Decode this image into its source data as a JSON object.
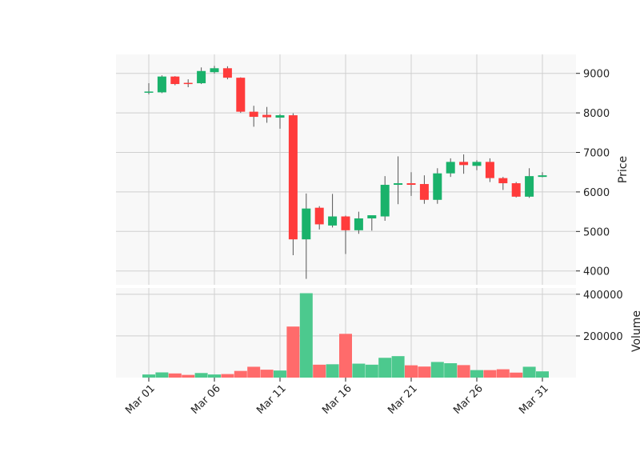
{
  "chart_data": {
    "type": "candlestick",
    "dates": [
      "Mar 01",
      "Mar 02",
      "Mar 03",
      "Mar 04",
      "Mar 05",
      "Mar 06",
      "Mar 07",
      "Mar 08",
      "Mar 09",
      "Mar 10",
      "Mar 11",
      "Mar 12",
      "Mar 13",
      "Mar 14",
      "Mar 15",
      "Mar 16",
      "Mar 17",
      "Mar 18",
      "Mar 19",
      "Mar 20",
      "Mar 21",
      "Mar 22",
      "Mar 23",
      "Mar 24",
      "Mar 25",
      "Mar 26",
      "Mar 27",
      "Mar 28",
      "Mar 29",
      "Mar 30",
      "Mar 31"
    ],
    "ohlc": [
      {
        "o": 8520,
        "h": 8750,
        "l": 8470,
        "c": 8540
      },
      {
        "o": 8520,
        "h": 8950,
        "l": 8500,
        "c": 8920
      },
      {
        "o": 8920,
        "h": 8930,
        "l": 8700,
        "c": 8730
      },
      {
        "o": 8760,
        "h": 8850,
        "l": 8650,
        "c": 8750
      },
      {
        "o": 8750,
        "h": 9150,
        "l": 8730,
        "c": 9060
      },
      {
        "o": 9030,
        "h": 9190,
        "l": 9000,
        "c": 9130
      },
      {
        "o": 9130,
        "h": 9180,
        "l": 8850,
        "c": 8890
      },
      {
        "o": 8890,
        "h": 8900,
        "l": 8000,
        "c": 8030
      },
      {
        "o": 8030,
        "h": 8180,
        "l": 7650,
        "c": 7900
      },
      {
        "o": 7950,
        "h": 8150,
        "l": 7750,
        "c": 7890
      },
      {
        "o": 7880,
        "h": 7970,
        "l": 7600,
        "c": 7940
      },
      {
        "o": 7940,
        "h": 7990,
        "l": 4400,
        "c": 4800
      },
      {
        "o": 4800,
        "h": 5960,
        "l": 3800,
        "c": 5580
      },
      {
        "o": 5600,
        "h": 5640,
        "l": 5050,
        "c": 5180
      },
      {
        "o": 5150,
        "h": 5950,
        "l": 5100,
        "c": 5380
      },
      {
        "o": 5380,
        "h": 5400,
        "l": 4430,
        "c": 5030
      },
      {
        "o": 5030,
        "h": 5500,
        "l": 4940,
        "c": 5330
      },
      {
        "o": 5330,
        "h": 5400,
        "l": 5020,
        "c": 5410
      },
      {
        "o": 5380,
        "h": 6400,
        "l": 5270,
        "c": 6180
      },
      {
        "o": 6180,
        "h": 6900,
        "l": 5690,
        "c": 6220
      },
      {
        "o": 6220,
        "h": 6500,
        "l": 5900,
        "c": 6180
      },
      {
        "o": 6200,
        "h": 6420,
        "l": 5700,
        "c": 5800
      },
      {
        "o": 5800,
        "h": 6600,
        "l": 5700,
        "c": 6470
      },
      {
        "o": 6470,
        "h": 6850,
        "l": 6380,
        "c": 6760
      },
      {
        "o": 6760,
        "h": 6950,
        "l": 6460,
        "c": 6680
      },
      {
        "o": 6660,
        "h": 6800,
        "l": 6550,
        "c": 6760
      },
      {
        "o": 6760,
        "h": 6850,
        "l": 6250,
        "c": 6350
      },
      {
        "o": 6350,
        "h": 6380,
        "l": 6050,
        "c": 6220
      },
      {
        "o": 6220,
        "h": 6250,
        "l": 5860,
        "c": 5880
      },
      {
        "o": 5880,
        "h": 6600,
        "l": 5850,
        "c": 6400
      },
      {
        "o": 6380,
        "h": 6500,
        "l": 6370,
        "c": 6420
      }
    ],
    "volume": [
      15000,
      25000,
      20000,
      13000,
      22000,
      15000,
      17000,
      32000,
      52000,
      38000,
      34000,
      245000,
      405000,
      62000,
      64000,
      210000,
      67000,
      62000,
      95000,
      103000,
      59000,
      53000,
      75000,
      69000,
      60000,
      36000,
      36000,
      40000,
      24000,
      52000,
      30000
    ],
    "price_ticks": [
      4000,
      5000,
      6000,
      7000,
      8000,
      9000
    ],
    "volume_ticks": [
      200000,
      400000
    ],
    "x_ticks": [
      {
        "i": 0,
        "label": "Mar 01"
      },
      {
        "i": 5,
        "label": "Mar 06"
      },
      {
        "i": 10,
        "label": "Mar 11"
      },
      {
        "i": 15,
        "label": "Mar 16"
      },
      {
        "i": 20,
        "label": "Mar 21"
      },
      {
        "i": 25,
        "label": "Mar 26"
      },
      {
        "i": 30,
        "label": "Mar 31"
      }
    ],
    "price_range": [
      3650,
      9480
    ],
    "volume_range": [
      0,
      430000
    ],
    "ylabel_price": "Price",
    "ylabel_volume": "Volume",
    "grid": true,
    "colors": {
      "up": "#1ab26b",
      "down": "#ff3b3b",
      "wick": "#555555",
      "volume_up": "#4cc98e",
      "volume_down": "#ff6b6b",
      "panel_bg": "#f8f8f8",
      "grid": "#cfcfcf"
    }
  }
}
